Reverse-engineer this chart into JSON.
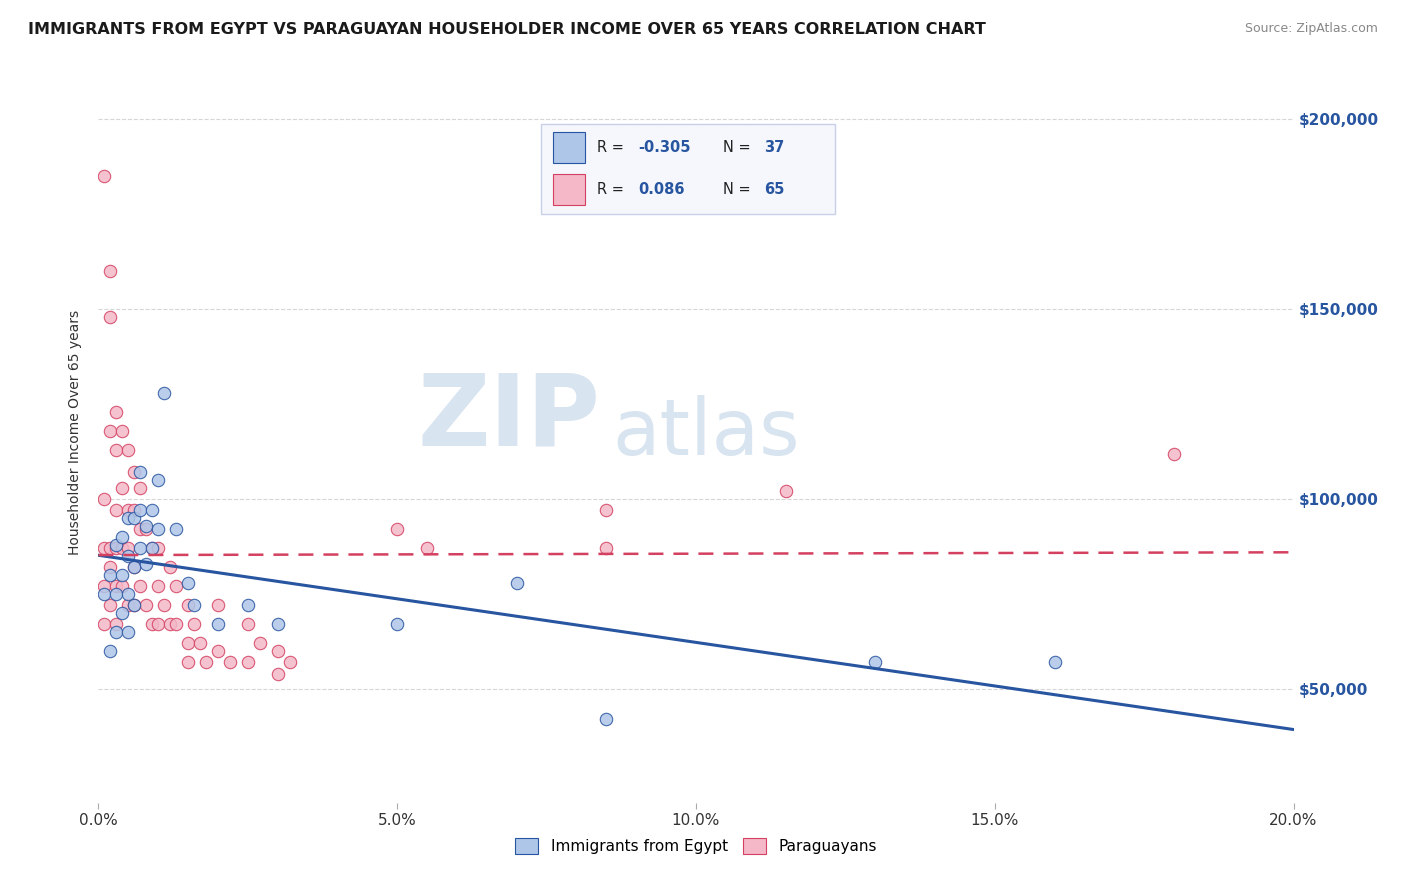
{
  "title": "IMMIGRANTS FROM EGYPT VS PARAGUAYAN HOUSEHOLDER INCOME OVER 65 YEARS CORRELATION CHART",
  "source": "Source: ZipAtlas.com",
  "ylabel": "Householder Income Over 65 years",
  "xlim": [
    0.0,
    0.2
  ],
  "ylim": [
    20000,
    215000
  ],
  "yticks": [
    50000,
    100000,
    150000,
    200000
  ],
  "ytick_labels": [
    "$50,000",
    "$100,000",
    "$150,000",
    "$200,000"
  ],
  "xticks": [
    0.0,
    0.05,
    0.1,
    0.15,
    0.2
  ],
  "xtick_labels": [
    "0.0%",
    "5.0%",
    "10.0%",
    "15.0%",
    "20.0%"
  ],
  "r_egypt": -0.305,
  "n_egypt": 37,
  "r_paraguayan": 0.086,
  "n_paraguayan": 65,
  "egypt_color": "#aec6e8",
  "paraguayan_color": "#f4b8c8",
  "egypt_line_color": "#2855a0",
  "paraguayan_line_color": "#d44060",
  "watermark_zip": "ZIP",
  "watermark_atlas": "atlas",
  "egypt_scatter_x": [
    0.001,
    0.002,
    0.002,
    0.003,
    0.003,
    0.003,
    0.004,
    0.004,
    0.004,
    0.005,
    0.005,
    0.005,
    0.005,
    0.006,
    0.006,
    0.006,
    0.007,
    0.007,
    0.007,
    0.008,
    0.008,
    0.009,
    0.009,
    0.01,
    0.01,
    0.011,
    0.013,
    0.015,
    0.016,
    0.02,
    0.025,
    0.03,
    0.05,
    0.07,
    0.085,
    0.13,
    0.16
  ],
  "egypt_scatter_y": [
    75000,
    60000,
    80000,
    65000,
    75000,
    88000,
    70000,
    80000,
    90000,
    65000,
    75000,
    85000,
    95000,
    72000,
    82000,
    95000,
    87000,
    97000,
    107000,
    83000,
    93000,
    87000,
    97000,
    92000,
    105000,
    128000,
    92000,
    78000,
    72000,
    67000,
    72000,
    67000,
    67000,
    78000,
    42000,
    57000,
    57000
  ],
  "paraguayan_scatter_x": [
    0.001,
    0.001,
    0.001,
    0.001,
    0.001,
    0.002,
    0.002,
    0.002,
    0.002,
    0.002,
    0.002,
    0.003,
    0.003,
    0.003,
    0.003,
    0.003,
    0.003,
    0.004,
    0.004,
    0.004,
    0.004,
    0.005,
    0.005,
    0.005,
    0.005,
    0.006,
    0.006,
    0.006,
    0.006,
    0.007,
    0.007,
    0.007,
    0.008,
    0.008,
    0.009,
    0.009,
    0.01,
    0.01,
    0.01,
    0.011,
    0.012,
    0.012,
    0.013,
    0.013,
    0.015,
    0.015,
    0.015,
    0.016,
    0.017,
    0.018,
    0.02,
    0.02,
    0.022,
    0.025,
    0.025,
    0.027,
    0.03,
    0.03,
    0.032,
    0.05,
    0.055,
    0.085,
    0.085,
    0.115,
    0.18
  ],
  "paraguayan_scatter_y": [
    185000,
    100000,
    87000,
    77000,
    67000,
    160000,
    148000,
    118000,
    87000,
    82000,
    72000,
    123000,
    113000,
    97000,
    87000,
    77000,
    67000,
    118000,
    103000,
    87000,
    77000,
    113000,
    97000,
    87000,
    72000,
    107000,
    97000,
    82000,
    72000,
    103000,
    92000,
    77000,
    92000,
    72000,
    87000,
    67000,
    87000,
    77000,
    67000,
    72000,
    82000,
    67000,
    77000,
    67000,
    72000,
    62000,
    57000,
    67000,
    62000,
    57000,
    72000,
    60000,
    57000,
    67000,
    57000,
    62000,
    60000,
    54000,
    57000,
    92000,
    87000,
    97000,
    87000,
    102000,
    112000
  ]
}
